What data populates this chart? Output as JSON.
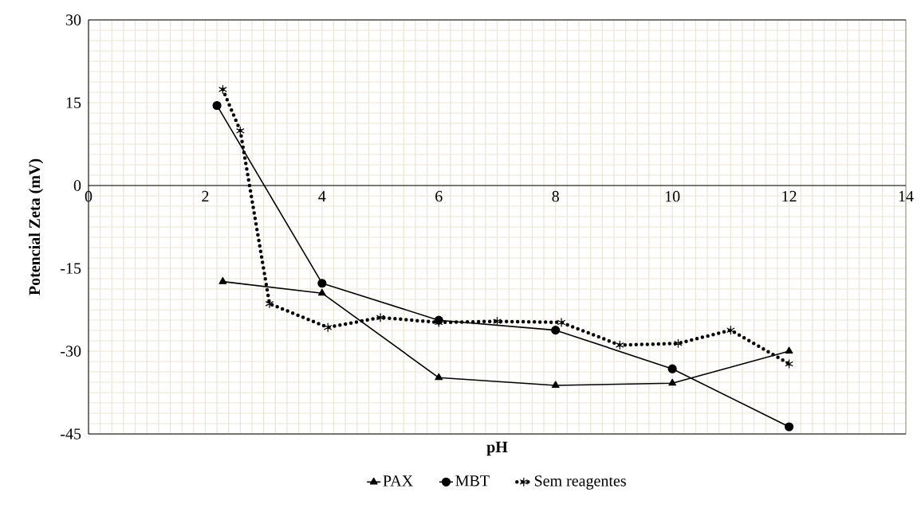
{
  "chart_data": {
    "type": "line",
    "xlabel": "pH",
    "ylabel": "Potencial Zeta (mV)",
    "xlim": [
      0,
      14
    ],
    "xticks": [
      0,
      2,
      4,
      6,
      8,
      10,
      12,
      14
    ],
    "ylim": [
      -45,
      30
    ],
    "yticks": [
      -45,
      -30,
      -15,
      0,
      15,
      30
    ],
    "grid": true,
    "legend": "bottom",
    "series": [
      {
        "name": "PAX",
        "color": "#000000",
        "marker": "triangle",
        "line_style": "solid",
        "x": [
          2.3,
          4,
          6,
          8,
          10,
          12
        ],
        "values": [
          -17.4,
          -19.5,
          -34.8,
          -36.2,
          -35.8,
          -30.0
        ]
      },
      {
        "name": "MBT",
        "color": "#000000",
        "marker": "circle",
        "line_style": "solid",
        "x": [
          2.2,
          4,
          6,
          8,
          10,
          12
        ],
        "values": [
          14.5,
          -17.7,
          -24.4,
          -26.2,
          -33.2,
          -43.7
        ]
      },
      {
        "name": "Sem reagentes",
        "color": "#000000",
        "marker": "cross",
        "line_style": "dotted",
        "x": [
          2.3,
          2.6,
          3.1,
          4.1,
          5.0,
          6.0,
          7.0,
          8.1,
          9.1,
          10.1,
          11.0,
          12.0
        ],
        "values": [
          17.4,
          9.9,
          -21.4,
          -25.7,
          -23.9,
          -24.8,
          -24.6,
          -24.8,
          -28.9,
          -28.6,
          -26.2,
          -32.3
        ]
      }
    ]
  }
}
